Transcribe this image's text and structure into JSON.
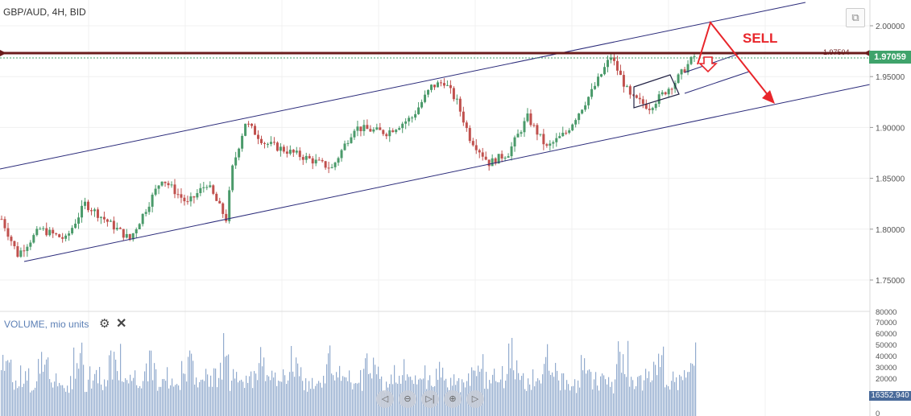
{
  "header": {
    "symbol": "GBP/AUD, 4H, BID"
  },
  "volume_panel": {
    "title": "VOLUME, mio units",
    "settings_icon": "gear-icon",
    "close_icon": "close-icon"
  },
  "annotations": {
    "sell_label": "SELL",
    "level_label": "1.97504",
    "sell_color": "#e8262b",
    "level_color": "#6b1d1d"
  },
  "last_price": {
    "value": "1.97059",
    "color": "#3fa36b"
  },
  "last_volume": {
    "value": "16352.940"
  },
  "nav_buttons": [
    "scroll-left-icon",
    "zoom-out-icon",
    "reset-icon",
    "zoom-in-icon",
    "scroll-right-icon"
  ],
  "chart_data": [
    {
      "type": "candlestick",
      "title": "GBP/AUD, 4H, BID",
      "price_axis": {
        "ticks": [
          "2.00000",
          "1.95000",
          "1.90000",
          "1.85000",
          "1.80000",
          "1.75000"
        ],
        "ylim": [
          1.73,
          2.02
        ]
      },
      "approx_close_path": [
        {
          "bar": 0,
          "price": 1.81
        },
        {
          "bar": 5,
          "price": 1.775
        },
        {
          "bar": 12,
          "price": 1.8
        },
        {
          "bar": 20,
          "price": 1.79
        },
        {
          "bar": 26,
          "price": 1.825
        },
        {
          "bar": 32,
          "price": 1.81
        },
        {
          "bar": 40,
          "price": 1.79
        },
        {
          "bar": 50,
          "price": 1.85
        },
        {
          "bar": 58,
          "price": 1.825
        },
        {
          "bar": 64,
          "price": 1.845
        },
        {
          "bar": 70,
          "price": 1.81
        },
        {
          "bar": 72,
          "price": 1.86
        },
        {
          "bar": 76,
          "price": 1.905
        },
        {
          "bar": 82,
          "price": 1.885
        },
        {
          "bar": 95,
          "price": 1.87
        },
        {
          "bar": 103,
          "price": 1.86
        },
        {
          "bar": 110,
          "price": 1.9
        },
        {
          "bar": 120,
          "price": 1.895
        },
        {
          "bar": 128,
          "price": 1.91
        },
        {
          "bar": 134,
          "price": 1.94
        },
        {
          "bar": 138,
          "price": 1.945
        },
        {
          "bar": 142,
          "price": 1.925
        },
        {
          "bar": 146,
          "price": 1.89
        },
        {
          "bar": 152,
          "price": 1.865
        },
        {
          "bar": 158,
          "price": 1.875
        },
        {
          "bar": 164,
          "price": 1.91
        },
        {
          "bar": 170,
          "price": 1.88
        },
        {
          "bar": 176,
          "price": 1.895
        },
        {
          "bar": 184,
          "price": 1.935
        },
        {
          "bar": 190,
          "price": 1.97
        },
        {
          "bar": 196,
          "price": 1.93
        },
        {
          "bar": 202,
          "price": 1.92
        },
        {
          "bar": 210,
          "price": 1.945
        },
        {
          "bar": 216,
          "price": 1.97
        }
      ],
      "horizontal_level": 1.97504,
      "last_price": 1.97059
    },
    {
      "type": "bar",
      "title": "VOLUME, mio units",
      "y_axis": {
        "ticks": [
          "80000",
          "70000",
          "60000",
          "50000",
          "40000",
          "30000",
          "20000",
          "0"
        ]
      },
      "last_value": 16352.94
    }
  ]
}
